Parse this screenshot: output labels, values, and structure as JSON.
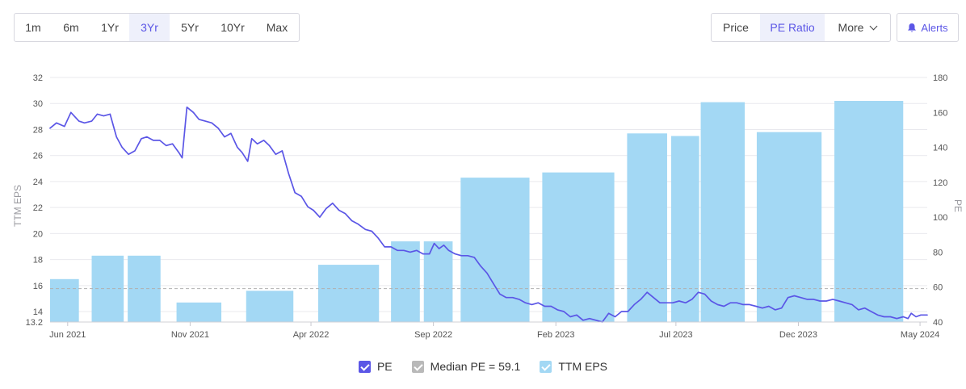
{
  "range_buttons": [
    {
      "label": "1m",
      "active": false
    },
    {
      "label": "6m",
      "active": false
    },
    {
      "label": "1Yr",
      "active": false
    },
    {
      "label": "3Yr",
      "active": true
    },
    {
      "label": "5Yr",
      "active": false
    },
    {
      "label": "10Yr",
      "active": false
    },
    {
      "label": "Max",
      "active": false
    }
  ],
  "view_buttons": {
    "price": "Price",
    "pe_ratio": "PE Ratio",
    "more": "More"
  },
  "alerts_label": "Alerts",
  "colors": {
    "pe_line": "#5b56e6",
    "eps_bar": "#a3d8f4",
    "median_line": "#b0b0b0",
    "active_text": "#5b56e6",
    "legend_median_box": "#b9b9b9"
  },
  "icons": {
    "alerts": "bell-icon",
    "more": "chevron-down-icon",
    "legend_check": "check-icon"
  },
  "legend": {
    "pe": "PE",
    "median": "Median PE = 59.1",
    "eps": "TTM EPS"
  },
  "chart_data": {
    "type": "bar",
    "x_range": [
      "2021-05-10",
      "2024-05-10"
    ],
    "x_ticks": [
      {
        "date": "2021-06-01",
        "label": "Jun 2021"
      },
      {
        "date": "2021-11-01",
        "label": "Nov 2021"
      },
      {
        "date": "2022-04-01",
        "label": "Apr 2022"
      },
      {
        "date": "2022-09-01",
        "label": "Sep 2022"
      },
      {
        "date": "2023-02-01",
        "label": "Feb 2023"
      },
      {
        "date": "2023-07-01",
        "label": "Jul 2023"
      },
      {
        "date": "2023-12-01",
        "label": "Dec 2023"
      },
      {
        "date": "2024-05-01",
        "label": "May 2024"
      }
    ],
    "left_axis": {
      "label": "TTM EPS",
      "ylim": [
        13.2,
        32
      ],
      "ticks": [
        14,
        16,
        18,
        20,
        22,
        24,
        26,
        28,
        30,
        32
      ],
      "min_label": "13.2"
    },
    "right_axis": {
      "label": "PE",
      "ylim": [
        40,
        180
      ],
      "ticks": [
        40,
        60,
        80,
        100,
        120,
        140,
        160,
        180
      ]
    },
    "grid": true,
    "legend_position": "bottom",
    "eps_bars": [
      {
        "start": "2021-05-10",
        "end": "2021-06-15",
        "value": 16.5
      },
      {
        "start": "2021-07-01",
        "end": "2021-08-10",
        "value": 18.3
      },
      {
        "start": "2021-08-15",
        "end": "2021-09-25",
        "value": 18.3
      },
      {
        "start": "2021-10-15",
        "end": "2021-12-10",
        "value": 14.7
      },
      {
        "start": "2022-01-10",
        "end": "2022-03-10",
        "value": 15.6
      },
      {
        "start": "2022-04-10",
        "end": "2022-06-25",
        "value": 17.6
      },
      {
        "start": "2022-07-10",
        "end": "2022-08-15",
        "value": 19.4
      },
      {
        "start": "2022-08-20",
        "end": "2022-09-25",
        "value": 19.4
      },
      {
        "start": "2022-10-05",
        "end": "2022-12-30",
        "value": 24.3
      },
      {
        "start": "2023-01-15",
        "end": "2023-04-15",
        "value": 24.7
      },
      {
        "start": "2023-05-01",
        "end": "2023-06-20",
        "value": 27.7
      },
      {
        "start": "2023-06-25",
        "end": "2023-07-30",
        "value": 27.5
      },
      {
        "start": "2023-08-01",
        "end": "2023-09-25",
        "value": 30.1
      },
      {
        "start": "2023-10-10",
        "end": "2023-12-30",
        "value": 27.8
      },
      {
        "start": "2024-01-15",
        "end": "2024-04-10",
        "value": 30.2
      }
    ],
    "median_pe": 59.1,
    "pe_series": {
      "name": "PE",
      "points": [
        [
          "2021-05-10",
          151
        ],
        [
          "2021-05-18",
          154
        ],
        [
          "2021-05-28",
          152
        ],
        [
          "2021-06-05",
          160
        ],
        [
          "2021-06-15",
          155
        ],
        [
          "2021-06-22",
          154
        ],
        [
          "2021-07-01",
          155
        ],
        [
          "2021-07-08",
          159
        ],
        [
          "2021-07-16",
          158
        ],
        [
          "2021-07-24",
          159
        ],
        [
          "2021-08-01",
          146
        ],
        [
          "2021-08-08",
          140
        ],
        [
          "2021-08-16",
          136
        ],
        [
          "2021-08-24",
          138
        ],
        [
          "2021-09-01",
          145
        ],
        [
          "2021-09-08",
          146
        ],
        [
          "2021-09-16",
          144
        ],
        [
          "2021-09-24",
          144
        ],
        [
          "2021-10-02",
          141
        ],
        [
          "2021-10-10",
          142
        ],
        [
          "2021-10-18",
          137
        ],
        [
          "2021-10-22",
          134
        ],
        [
          "2021-10-28",
          163
        ],
        [
          "2021-11-05",
          160
        ],
        [
          "2021-11-12",
          156
        ],
        [
          "2021-11-20",
          155
        ],
        [
          "2021-11-28",
          154
        ],
        [
          "2021-12-06",
          151
        ],
        [
          "2021-12-14",
          146
        ],
        [
          "2021-12-22",
          148
        ],
        [
          "2021-12-30",
          140
        ],
        [
          "2022-01-05",
          137
        ],
        [
          "2022-01-12",
          132
        ],
        [
          "2022-01-17",
          145
        ],
        [
          "2022-01-24",
          142
        ],
        [
          "2022-02-01",
          144
        ],
        [
          "2022-02-08",
          141
        ],
        [
          "2022-02-16",
          136
        ],
        [
          "2022-02-24",
          138
        ],
        [
          "2022-03-04",
          125
        ],
        [
          "2022-03-12",
          114
        ],
        [
          "2022-03-20",
          112
        ],
        [
          "2022-03-28",
          106
        ],
        [
          "2022-04-04",
          104
        ],
        [
          "2022-04-12",
          100
        ],
        [
          "2022-04-20",
          105
        ],
        [
          "2022-04-28",
          108
        ],
        [
          "2022-05-06",
          104
        ],
        [
          "2022-05-14",
          102
        ],
        [
          "2022-05-22",
          98
        ],
        [
          "2022-05-30",
          96
        ],
        [
          "2022-06-08",
          93
        ],
        [
          "2022-06-16",
          92
        ],
        [
          "2022-06-24",
          88
        ],
        [
          "2022-07-02",
          83
        ],
        [
          "2022-07-10",
          83
        ],
        [
          "2022-07-18",
          81
        ],
        [
          "2022-07-26",
          81
        ],
        [
          "2022-08-03",
          80
        ],
        [
          "2022-08-11",
          81
        ],
        [
          "2022-08-19",
          79
        ],
        [
          "2022-08-27",
          79
        ],
        [
          "2022-09-02",
          85
        ],
        [
          "2022-09-08",
          82
        ],
        [
          "2022-09-14",
          84
        ],
        [
          "2022-09-20",
          81
        ],
        [
          "2022-09-28",
          79
        ],
        [
          "2022-10-06",
          78
        ],
        [
          "2022-10-14",
          78
        ],
        [
          "2022-10-22",
          77
        ],
        [
          "2022-10-30",
          72
        ],
        [
          "2022-11-07",
          68
        ],
        [
          "2022-11-15",
          62
        ],
        [
          "2022-11-23",
          56
        ],
        [
          "2022-12-01",
          54
        ],
        [
          "2022-12-09",
          54
        ],
        [
          "2022-12-17",
          53
        ],
        [
          "2022-12-25",
          51
        ],
        [
          "2023-01-02",
          50
        ],
        [
          "2023-01-10",
          51
        ],
        [
          "2023-01-18",
          49
        ],
        [
          "2023-01-26",
          49
        ],
        [
          "2023-02-03",
          47
        ],
        [
          "2023-02-11",
          46
        ],
        [
          "2023-02-19",
          43
        ],
        [
          "2023-02-27",
          44
        ],
        [
          "2023-03-07",
          41
        ],
        [
          "2023-03-15",
          42
        ],
        [
          "2023-03-23",
          41
        ],
        [
          "2023-03-31",
          40
        ],
        [
          "2023-04-08",
          45
        ],
        [
          "2023-04-16",
          43
        ],
        [
          "2023-04-24",
          46
        ],
        [
          "2023-05-02",
          46
        ],
        [
          "2023-05-10",
          50
        ],
        [
          "2023-05-18",
          53
        ],
        [
          "2023-05-26",
          57
        ],
        [
          "2023-06-03",
          54
        ],
        [
          "2023-06-11",
          51
        ],
        [
          "2023-06-19",
          51
        ],
        [
          "2023-06-27",
          51
        ],
        [
          "2023-07-05",
          52
        ],
        [
          "2023-07-13",
          51
        ],
        [
          "2023-07-21",
          53
        ],
        [
          "2023-07-29",
          57
        ],
        [
          "2023-08-06",
          56
        ],
        [
          "2023-08-14",
          52
        ],
        [
          "2023-08-22",
          50
        ],
        [
          "2023-08-30",
          49
        ],
        [
          "2023-09-07",
          51
        ],
        [
          "2023-09-15",
          51
        ],
        [
          "2023-09-23",
          50
        ],
        [
          "2023-10-01",
          50
        ],
        [
          "2023-10-09",
          49
        ],
        [
          "2023-10-17",
          48
        ],
        [
          "2023-10-25",
          49
        ],
        [
          "2023-11-02",
          47
        ],
        [
          "2023-11-10",
          48
        ],
        [
          "2023-11-18",
          54
        ],
        [
          "2023-11-26",
          55
        ],
        [
          "2023-12-04",
          54
        ],
        [
          "2023-12-12",
          53
        ],
        [
          "2023-12-20",
          53
        ],
        [
          "2023-12-28",
          52
        ],
        [
          "2024-01-05",
          52
        ],
        [
          "2024-01-13",
          53
        ],
        [
          "2024-01-21",
          52
        ],
        [
          "2024-01-29",
          51
        ],
        [
          "2024-02-06",
          50
        ],
        [
          "2024-02-14",
          47
        ],
        [
          "2024-02-22",
          48
        ],
        [
          "2024-03-01",
          46
        ],
        [
          "2024-03-09",
          44
        ],
        [
          "2024-03-17",
          43
        ],
        [
          "2024-03-25",
          43
        ],
        [
          "2024-04-02",
          42
        ],
        [
          "2024-04-10",
          43
        ],
        [
          "2024-04-16",
          42
        ],
        [
          "2024-04-20",
          45
        ],
        [
          "2024-04-26",
          43
        ],
        [
          "2024-05-02",
          44
        ],
        [
          "2024-05-10",
          44
        ]
      ]
    }
  }
}
